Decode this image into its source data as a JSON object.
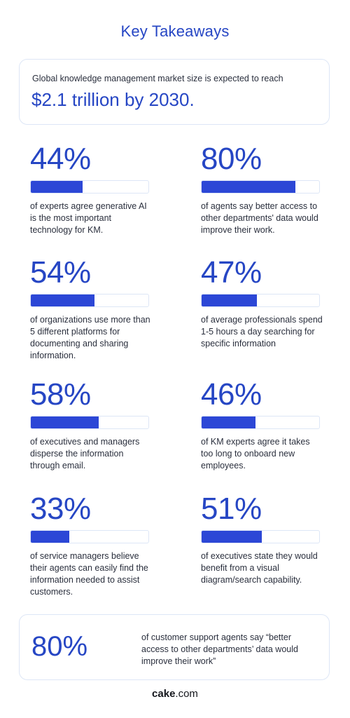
{
  "header": {
    "title": "Key Takeaways"
  },
  "market": {
    "lead": "Global knowledge management market size is expected to reach",
    "value": "$2.1 trillion by 2030."
  },
  "stats": [
    {
      "percent": "44%",
      "value": 0.44,
      "description": "of experts agree generative AI is the most important technology for KM."
    },
    {
      "percent": "80%",
      "value": 0.8,
      "description": "of agents say better access to other departments' data would improve their work."
    },
    {
      "percent": "54%",
      "value": 0.54,
      "description": "of organizations use more than 5 different platforms for documenting and sharing information."
    },
    {
      "percent": "47%",
      "value": 0.47,
      "description": "of average professionals spend 1-5 hours a day searching for specific information"
    },
    {
      "percent": "58%",
      "value": 0.58,
      "description": "of executives and managers disperse the information through email."
    },
    {
      "percent": "46%",
      "value": 0.46,
      "description": "of KM experts agree it takes too long to onboard new employees."
    },
    {
      "percent": "33%",
      "value": 0.33,
      "description": "of service managers believe their agents can easily find the information needed to assist customers."
    },
    {
      "percent": "51%",
      "value": 0.51,
      "description": "of executives state they would benefit from a visual diagram/search capability."
    }
  ],
  "callout": {
    "percent": "80%",
    "description": "of customer support agents say “better access to other departments’ data would improve their work”"
  },
  "footer": {
    "brand_bold": "cake",
    "brand_rest": ".com"
  },
  "colors": {
    "accent": "#2646c4",
    "bar_fill": "#2c47d6",
    "border": "#dde6f6"
  }
}
